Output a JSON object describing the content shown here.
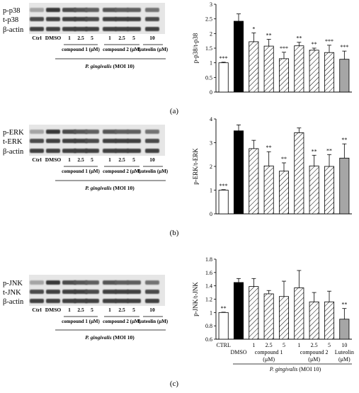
{
  "panels": [
    {
      "letter": "(a)",
      "blot": {
        "rows": [
          "p-p38",
          "t-p38",
          "β-actin"
        ],
        "lanes": [
          "Ctrl",
          "DMSO",
          "1",
          "2.5",
          "5",
          "1",
          "2.5",
          "5",
          "10"
        ],
        "group_labels": [
          "compound 1 (μM)",
          "compound 2 (μM)",
          "Luteolin (μM)"
        ],
        "infection": "P. gingivalis (MOI 10)"
      },
      "chart": {
        "type": "bar",
        "ylabel": "p-p38/t-p38",
        "ylim": [
          0,
          3
        ],
        "yticks": [
          "0",
          "0.5",
          "1",
          "1.5",
          "2",
          "2.5",
          "3"
        ],
        "categories": [
          "Ctrl",
          "DMSO",
          "1",
          "2.5",
          "5",
          "1",
          "2.5",
          "5",
          "10"
        ],
        "values": [
          1.0,
          2.42,
          1.72,
          1.57,
          1.14,
          1.58,
          1.43,
          1.35,
          1.12
        ],
        "errors": [
          0.02,
          0.25,
          0.3,
          0.23,
          0.22,
          0.12,
          0.07,
          0.25,
          0.28
        ],
        "significance": [
          "***",
          "",
          "*",
          "**",
          "***",
          "**",
          "**",
          "***",
          "***"
        ]
      }
    },
    {
      "letter": "(b)",
      "blot": {
        "rows": [
          "p-ERK",
          "t-ERK",
          "β-actin"
        ],
        "lanes": [
          "Ctrl",
          "DMSO",
          "1",
          "2.5",
          "5",
          "1",
          "2.5",
          "5",
          "10"
        ],
        "group_labels": [
          "compound 1 (μM)",
          "compound 2 (μM)",
          "Luteolin (μM)"
        ],
        "infection": "P. gingivalis (MOI 10)"
      },
      "chart": {
        "type": "bar",
        "ylabel": "p-ERK/t-ERK",
        "ylim": [
          0,
          4
        ],
        "yticks": [
          "0",
          "1",
          "2",
          "3",
          "4"
        ],
        "categories": [
          "Ctrl",
          "DMSO",
          "1",
          "2.5",
          "5",
          "1",
          "2.5",
          "5",
          "10"
        ],
        "values": [
          1.0,
          3.5,
          2.75,
          2.02,
          1.8,
          3.42,
          2.02,
          2.0,
          2.35
        ],
        "errors": [
          0.02,
          0.25,
          0.35,
          0.6,
          0.35,
          0.2,
          0.45,
          0.5,
          0.6
        ],
        "significance": [
          "***",
          "",
          "",
          "**",
          "**",
          "",
          "**",
          "**",
          "**"
        ]
      }
    },
    {
      "letter": "(c)",
      "blot": {
        "rows": [
          "p-JNK",
          "t-JNK",
          "β-actin"
        ],
        "lanes": [
          "Ctrl",
          "DMSO",
          "1",
          "2.5",
          "5",
          "1",
          "2.5",
          "5",
          "10"
        ],
        "group_labels": [
          "compound 1 (μM)",
          "compound 2 (μM)",
          "Luteolin (μM)"
        ],
        "infection": "P. gingivalis (MOI 10)"
      },
      "chart": {
        "type": "bar",
        "ylabel": "p-JNK/t-JNK",
        "ylim": [
          0.6,
          1.8
        ],
        "yticks": [
          "0.6",
          "0.8",
          "1",
          "1.2",
          "1.4",
          "1.6",
          "1.8"
        ],
        "categories": [
          "Ctrl",
          "DMSO",
          "1",
          "2.5",
          "5",
          "1",
          "2.5",
          "5",
          "10"
        ],
        "values": [
          1.0,
          1.45,
          1.39,
          1.28,
          1.24,
          1.37,
          1.16,
          1.16,
          0.9
        ],
        "errors": [
          0.005,
          0.06,
          0.12,
          0.05,
          0.23,
          0.26,
          0.14,
          0.16,
          0.16
        ],
        "significance": [
          "**",
          "",
          "",
          "",
          "",
          "",
          "",
          "",
          "**"
        ],
        "x_labels": {
          "ctrl": "CTRL",
          "dmso": "DMSO",
          "doses": [
            "1",
            "2.5",
            "5",
            "1",
            "2.5",
            "5",
            "10"
          ],
          "groups": [
            [
              "compound 1",
              "(μM)"
            ],
            [
              "compound 2",
              "(μM)"
            ],
            [
              "Luteolin",
              "(μM)"
            ]
          ],
          "infection": "P. gingivalis (MOI 10)"
        }
      }
    }
  ],
  "chart_data": [
    {
      "type": "bar",
      "ylabel": "p-p38/t-p38",
      "ylim": [
        0,
        3
      ],
      "categories": [
        "Ctrl",
        "DMSO",
        "compound 1 1",
        "compound 1 2.5",
        "compound 1 5",
        "compound 2 1",
        "compound 2 2.5",
        "compound 2 5",
        "Luteolin 10"
      ],
      "values": [
        1.0,
        2.42,
        1.72,
        1.57,
        1.14,
        1.58,
        1.43,
        1.35,
        1.12
      ],
      "errors": [
        0.02,
        0.25,
        0.3,
        0.23,
        0.22,
        0.12,
        0.07,
        0.25,
        0.28
      ]
    },
    {
      "type": "bar",
      "ylabel": "p-ERK/t-ERK",
      "ylim": [
        0,
        4
      ],
      "categories": [
        "Ctrl",
        "DMSO",
        "compound 1 1",
        "compound 1 2.5",
        "compound 1 5",
        "compound 2 1",
        "compound 2 2.5",
        "compound 2 5",
        "Luteolin 10"
      ],
      "values": [
        1.0,
        3.5,
        2.75,
        2.02,
        1.8,
        3.42,
        2.02,
        2.0,
        2.35
      ],
      "errors": [
        0.02,
        0.25,
        0.35,
        0.6,
        0.35,
        0.2,
        0.45,
        0.5,
        0.6
      ]
    },
    {
      "type": "bar",
      "ylabel": "p-JNK/t-JNK",
      "ylim": [
        0.6,
        1.8
      ],
      "categories": [
        "CTRL",
        "DMSO",
        "compound 1 1",
        "compound 1 2.5",
        "compound 1 5",
        "compound 2 1",
        "compound 2 2.5",
        "compound 2 5",
        "Luteolin 10"
      ],
      "values": [
        1.0,
        1.45,
        1.39,
        1.28,
        1.24,
        1.37,
        1.16,
        1.16,
        0.9
      ],
      "errors": [
        0.005,
        0.06,
        0.12,
        0.05,
        0.23,
        0.26,
        0.14,
        0.16,
        0.16
      ]
    }
  ]
}
